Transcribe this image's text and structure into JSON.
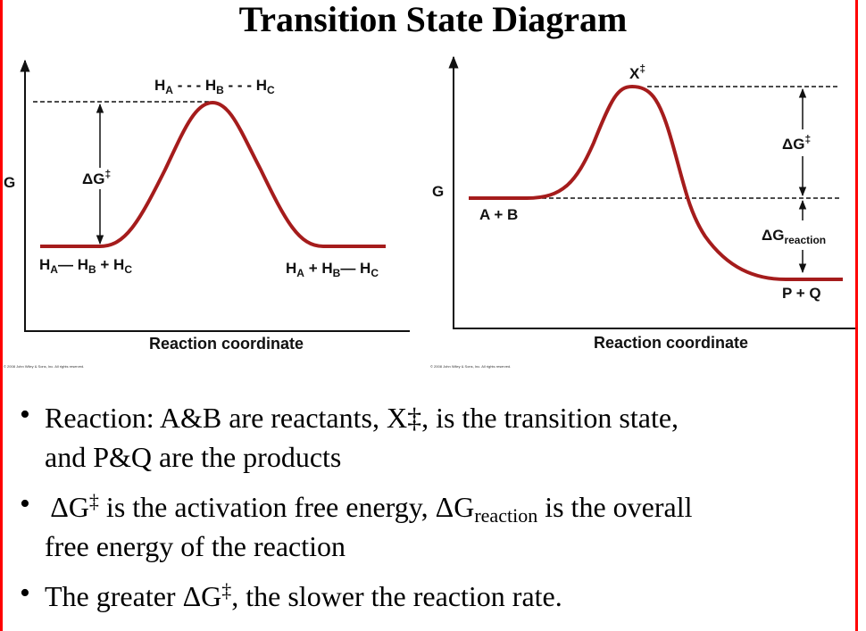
{
  "title": "Transition State Diagram",
  "colors": {
    "curve": "#a51c1c",
    "border": "#ff0000"
  },
  "left_diagram": {
    "y_axis_label": "G",
    "x_axis_label": "Reaction coordinate",
    "transition_state": {
      "a": "H",
      "a_sub": "A",
      "sep1": "- - -",
      "b": "H",
      "b_sub": "B",
      "sep2": "- - -",
      "c": "H",
      "c_sub": "C"
    },
    "reactants": {
      "a": "H",
      "a_sub": "A",
      "bond": "—",
      "b": "H",
      "b_sub": "B",
      "plus": "+",
      "c": "H",
      "c_sub": "C"
    },
    "products": {
      "a": "H",
      "a_sub": "A",
      "plus": "+",
      "b": "H",
      "b_sub": "B",
      "bond": "—",
      "c": "H",
      "c_sub": "C"
    },
    "delta_g": "ΔG",
    "delta_g_sup": "‡",
    "copyright": "© 2008 John Wiley & Sons, Inc. All rights reserved."
  },
  "right_diagram": {
    "y_axis_label": "G",
    "x_axis_label": "Reaction coordinate",
    "transition_state": "X",
    "transition_state_sup": "‡",
    "reactants": "A + B",
    "products": "P + Q",
    "delta_g": "ΔG",
    "delta_g_sup": "‡",
    "delta_g_reaction": "ΔG",
    "delta_g_reaction_sub": "reaction",
    "copyright": "© 2008 John Wiley & Sons, Inc. All rights reserved."
  },
  "bullets": [
    {
      "dot": "•",
      "line1": "Reaction: A&B are reactants, X‡, is the transition state,",
      "line2": "and P&Q are the products"
    },
    {
      "dot": "•",
      "pre": " ΔG",
      "sup": "‡",
      "mid": " is the activation free energy, ΔG",
      "sub": "reaction",
      "post": " is the overall",
      "line2": "free energy of the reaction"
    },
    {
      "dot": "•",
      "pre": "The greater ΔG",
      "sup": "‡",
      "post": ", the slower the reaction rate."
    }
  ]
}
